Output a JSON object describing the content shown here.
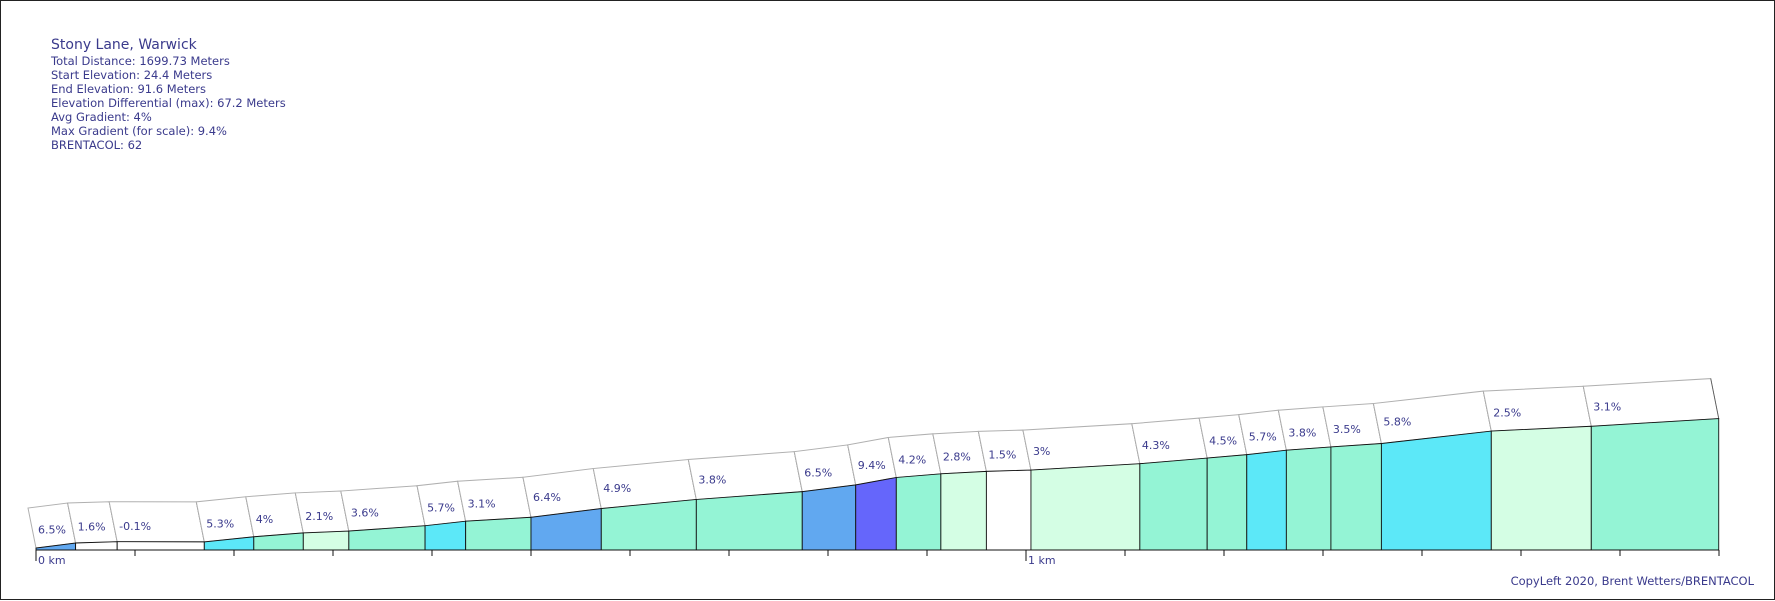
{
  "info": {
    "title": "Stony Lane, Warwick",
    "lines": [
      "Total Distance: 1699.73 Meters",
      "Start Elevation: 24.4 Meters",
      "End Elevation: 91.6 Meters",
      "Elevation Differential (max): 67.2 Meters",
      "Avg Gradient: 4%",
      "Max Gradient (for scale): 9.4%",
      "BRENTACOL: 62"
    ]
  },
  "copyleft": "CopyLeft 2020, Brent Wetters/BRENTACOL",
  "chart_data": {
    "type": "area",
    "title": "Stony Lane, Warwick",
    "x_unit": "km",
    "xlim": [
      0,
      1.69973
    ],
    "x_tick_labels": [
      "0 km",
      "1 km"
    ],
    "ylim": [
      24.4,
      91.6
    ],
    "segments": [
      {
        "start_m": 0,
        "end_m": 40,
        "gradient": "6.5%",
        "color": "#61a8f0"
      },
      {
        "start_m": 40,
        "end_m": 82,
        "gradient": "1.6%",
        "color": "#ffffff"
      },
      {
        "start_m": 82,
        "end_m": 170,
        "gradient": "-0.1%",
        "color": "#ffffff"
      },
      {
        "start_m": 170,
        "end_m": 220,
        "gradient": "5.3%",
        "color": "#5ce8f8"
      },
      {
        "start_m": 220,
        "end_m": 270,
        "gradient": "4%",
        "color": "#94f4d5"
      },
      {
        "start_m": 270,
        "end_m": 316,
        "gradient": "2.1%",
        "color": "#d4fee4"
      },
      {
        "start_m": 316,
        "end_m": 393,
        "gradient": "3.6%",
        "color": "#94f4d5"
      },
      {
        "start_m": 393,
        "end_m": 434,
        "gradient": "5.7%",
        "color": "#5ce8f8"
      },
      {
        "start_m": 434,
        "end_m": 500,
        "gradient": "3.1%",
        "color": "#94f4d5"
      },
      {
        "start_m": 500,
        "end_m": 571,
        "gradient": "6.4%",
        "color": "#61a8f0"
      },
      {
        "start_m": 571,
        "end_m": 667,
        "gradient": "4.9%",
        "color": "#94f4d5"
      },
      {
        "start_m": 667,
        "end_m": 774,
        "gradient": "3.8%",
        "color": "#94f4d5"
      },
      {
        "start_m": 774,
        "end_m": 828,
        "gradient": "6.5%",
        "color": "#61a8f0"
      },
      {
        "start_m": 828,
        "end_m": 869,
        "gradient": "9.4%",
        "color": "#6566fb"
      },
      {
        "start_m": 869,
        "end_m": 914,
        "gradient": "4.2%",
        "color": "#94f4d5"
      },
      {
        "start_m": 914,
        "end_m": 960,
        "gradient": "2.8%",
        "color": "#d4fee4"
      },
      {
        "start_m": 960,
        "end_m": 1005,
        "gradient": "1.5%",
        "color": "#ffffff"
      },
      {
        "start_m": 1005,
        "end_m": 1115,
        "gradient": "3%",
        "color": "#d4fee4"
      },
      {
        "start_m": 1115,
        "end_m": 1183,
        "gradient": "4.3%",
        "color": "#94f4d5"
      },
      {
        "start_m": 1183,
        "end_m": 1223,
        "gradient": "4.5%",
        "color": "#94f4d5"
      },
      {
        "start_m": 1223,
        "end_m": 1263,
        "gradient": "5.7%",
        "color": "#5ce8f8"
      },
      {
        "start_m": 1263,
        "end_m": 1308,
        "gradient": "3.8%",
        "color": "#94f4d5"
      },
      {
        "start_m": 1308,
        "end_m": 1359,
        "gradient": "3.5%",
        "color": "#94f4d5"
      },
      {
        "start_m": 1359,
        "end_m": 1470,
        "gradient": "5.8%",
        "color": "#5ce8f8"
      },
      {
        "start_m": 1470,
        "end_m": 1571,
        "gradient": "2.5%",
        "color": "#d4fee4"
      },
      {
        "start_m": 1571,
        "end_m": 1699.73,
        "gradient": "3.1%",
        "color": "#94f4d5"
      }
    ]
  }
}
